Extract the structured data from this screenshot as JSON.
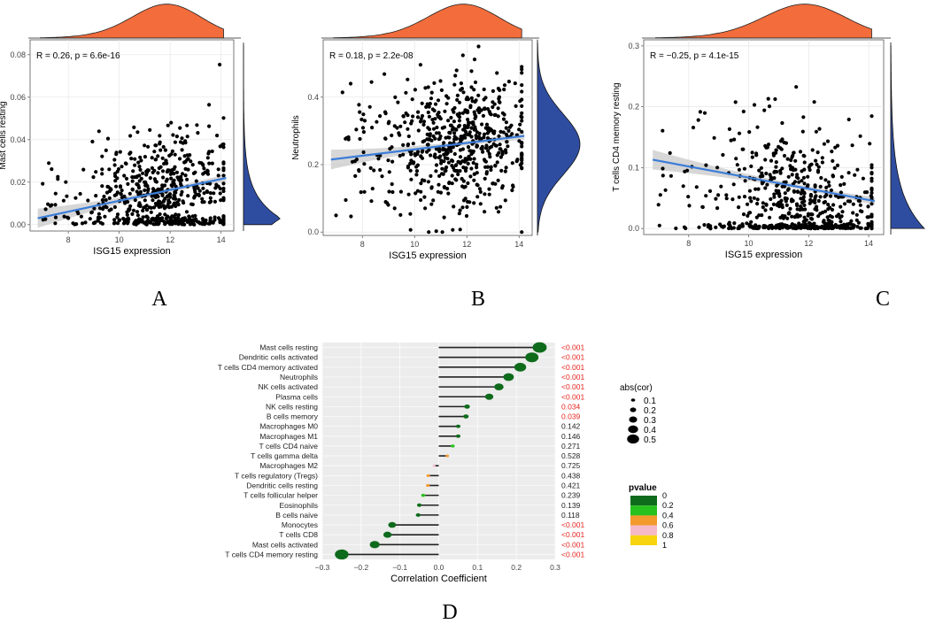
{
  "panel_labels": [
    "A",
    "B",
    "C",
    "D"
  ],
  "colors": {
    "density_top": "#f26c3c",
    "density_right": "#2f4da0",
    "fit_line": "#3b7dd8",
    "ci_band": "#c9c9c9",
    "panel_bg": "#ffffff",
    "grid": "#e6e6e6",
    "lollipop_bg": "#ececec",
    "sig_red": "#e8251f"
  },
  "chart_data": [
    {
      "type": "scatter",
      "panel": "A",
      "xlabel": "ISG15 expression",
      "ylabel": "Mast cells resting",
      "annotation": {
        "R": "R = 0.26, ",
        "p": "p = 6.6e-16"
      },
      "xlim": [
        6.5,
        14.5
      ],
      "ylim": [
        -0.003,
        0.087
      ],
      "xticks": [
        8,
        10,
        12,
        14
      ],
      "xtick_labels": [
        "8",
        "10",
        "12",
        "14"
      ],
      "yticks": [
        0.0,
        0.02,
        0.04,
        0.06,
        0.08
      ],
      "ytick_labels": [
        "0.00",
        "0.02",
        "0.04",
        "0.06",
        "0.08"
      ],
      "fit": {
        "x": [
          6.8,
          14.2
        ],
        "y": [
          0.003,
          0.022
        ]
      },
      "dist": {
        "xmean": 11.9,
        "xsd": 1.35,
        "ymode": 0.003,
        "yscale": 0.014,
        "ymin": 0.0,
        "ymax": 0.084
      }
    },
    {
      "type": "scatter",
      "panel": "B",
      "xlabel": "ISG15 expression",
      "ylabel": "Neutrophils",
      "annotation": {
        "R": "R = 0.18, ",
        "p": "p = 2.2e-08"
      },
      "xlim": [
        6.5,
        14.5
      ],
      "ylim": [
        -0.01,
        0.57
      ],
      "xticks": [
        8,
        10,
        12,
        14
      ],
      "xtick_labels": [
        "8",
        "10",
        "12",
        "14"
      ],
      "yticks": [
        0.0,
        0.2,
        0.4
      ],
      "ytick_labels": [
        "0.0",
        "0.2",
        "0.4"
      ],
      "fit": {
        "x": [
          6.8,
          14.2
        ],
        "y": [
          0.215,
          0.285
        ]
      },
      "dist": {
        "xmean": 11.9,
        "xsd": 1.35,
        "ymode": 0.26,
        "yscale": 0.09,
        "ymin": 0.0,
        "ymax": 0.56
      }
    },
    {
      "type": "scatter",
      "panel": "C",
      "xlabel": "ISG15 expression",
      "ylabel": "T cells CD4 memory resting",
      "annotation": {
        "R": "R = −0.25, ",
        "p": "p = 4.1e-15"
      },
      "xlim": [
        6.5,
        14.5
      ],
      "ylim": [
        -0.01,
        0.31
      ],
      "xticks": [
        8,
        10,
        12,
        14
      ],
      "xtick_labels": [
        "8",
        "10",
        "12",
        "14"
      ],
      "yticks": [
        0.0,
        0.1,
        0.2,
        0.3
      ],
      "ytick_labels": [
        "0.0",
        "0.1",
        "0.2",
        "0.3"
      ],
      "fit": {
        "x": [
          6.8,
          14.2
        ],
        "y": [
          0.113,
          0.045
        ]
      },
      "dist": {
        "xmean": 11.9,
        "xsd": 1.35,
        "ymode": 0.0,
        "yscale": 0.075,
        "ymin": 0.0,
        "ymax": 0.3
      }
    },
    {
      "type": "lollipop",
      "panel": "D",
      "xlabel": "Correlation Coefficient",
      "xlim": [
        -0.3,
        0.3
      ],
      "xticks": [
        -0.3,
        -0.2,
        -0.1,
        0.0,
        0.1,
        0.2,
        0.3
      ],
      "xtick_labels": [
        "−0.3",
        "−0.2",
        "−0.1",
        "0.0",
        "0.1",
        "0.2",
        "0.3"
      ],
      "rows": [
        {
          "label": "Mast cells resting",
          "cor": 0.26,
          "pvalue": 0.0,
          "pvalue_label": "<0.001"
        },
        {
          "label": "Dendritic cells activated",
          "cor": 0.24,
          "pvalue": 0.0,
          "pvalue_label": "<0.001"
        },
        {
          "label": "T cells CD4 memory activated",
          "cor": 0.21,
          "pvalue": 0.0,
          "pvalue_label": "<0.001"
        },
        {
          "label": "Neutrophils",
          "cor": 0.18,
          "pvalue": 0.0,
          "pvalue_label": "<0.001"
        },
        {
          "label": "NK cells activated",
          "cor": 0.155,
          "pvalue": 0.0,
          "pvalue_label": "<0.001"
        },
        {
          "label": "Plasma cells",
          "cor": 0.13,
          "pvalue": 0.0,
          "pvalue_label": "<0.001"
        },
        {
          "label": "NK cells resting",
          "cor": 0.073,
          "pvalue": 0.034,
          "pvalue_label": "0.034"
        },
        {
          "label": "B cells memory",
          "cor": 0.07,
          "pvalue": 0.039,
          "pvalue_label": "0.039"
        },
        {
          "label": "Macrophages M0",
          "cor": 0.05,
          "pvalue": 0.142,
          "pvalue_label": "0.142"
        },
        {
          "label": "Macrophages M1",
          "cor": 0.05,
          "pvalue": 0.146,
          "pvalue_label": "0.146"
        },
        {
          "label": "T cells CD4 naive",
          "cor": 0.036,
          "pvalue": 0.271,
          "pvalue_label": "0.271"
        },
        {
          "label": "T cells gamma delta",
          "cor": 0.022,
          "pvalue": 0.528,
          "pvalue_label": "0.528"
        },
        {
          "label": "Macrophages M2",
          "cor": -0.012,
          "pvalue": 0.725,
          "pvalue_label": "0.725"
        },
        {
          "label": "T cells regulatory (Tregs)",
          "cor": -0.027,
          "pvalue": 0.438,
          "pvalue_label": "0.438"
        },
        {
          "label": "Dendritic cells resting",
          "cor": -0.028,
          "pvalue": 0.421,
          "pvalue_label": "0.421"
        },
        {
          "label": "T cells follicular helper",
          "cor": -0.04,
          "pvalue": 0.239,
          "pvalue_label": "0.239"
        },
        {
          "label": "Eosinophils",
          "cor": -0.05,
          "pvalue": 0.139,
          "pvalue_label": "0.139"
        },
        {
          "label": "B cells naive",
          "cor": -0.053,
          "pvalue": 0.118,
          "pvalue_label": "0.118"
        },
        {
          "label": "Monocytes",
          "cor": -0.12,
          "pvalue": 0.0,
          "pvalue_label": "<0.001"
        },
        {
          "label": "T cells CD8",
          "cor": -0.132,
          "pvalue": 0.0,
          "pvalue_label": "<0.001"
        },
        {
          "label": "Mast cells activated",
          "cor": -0.165,
          "pvalue": 0.0,
          "pvalue_label": "<0.001"
        },
        {
          "label": "T cells CD4 memory resting",
          "cor": -0.25,
          "pvalue": 0.0,
          "pvalue_label": "<0.001"
        }
      ],
      "size_legend": {
        "title": "abs(cor)",
        "values": [
          0.1,
          0.2,
          0.3,
          0.4,
          0.5
        ],
        "labels": [
          "0.1",
          "0.2",
          "0.3",
          "0.4",
          "0.5"
        ]
      },
      "color_legend": {
        "title": "pvalue",
        "breaks": [
          0,
          0.2,
          0.4,
          0.6,
          0.8,
          1
        ],
        "labels": [
          "0",
          "0.2",
          "0.4",
          "0.6",
          "0.8",
          "1"
        ],
        "colors": [
          "#0f6b1c",
          "#27c21d",
          "#f39a2c",
          "#f5b9c9",
          "#f7d40e"
        ]
      }
    }
  ]
}
